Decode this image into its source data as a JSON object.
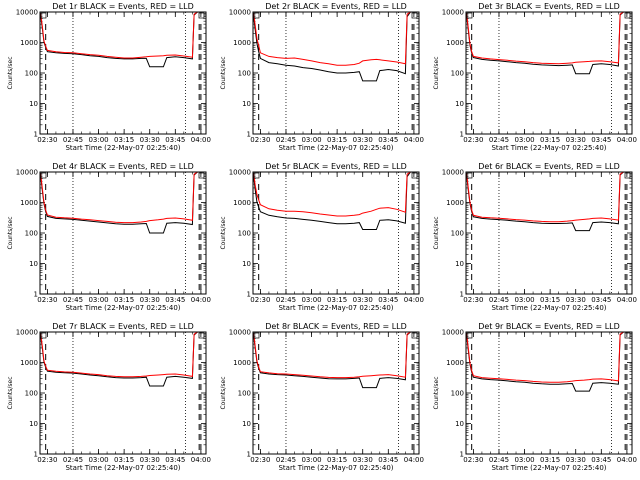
{
  "colors": {
    "events": "#000000",
    "lld": "#ff0000",
    "background": "#ffffff"
  },
  "axes": {
    "ylabel": "Counts/sec",
    "xlabel": "Start Time (22-May-07 02:25:40)",
    "x_tick_labels": [
      "02:30",
      "02:45",
      "03:00",
      "03:15",
      "03:30",
      "03:45",
      "04:00"
    ],
    "y_tick_labels": [
      "1",
      "10",
      "100",
      "1000",
      "10000"
    ]
  },
  "chart_data": [
    {
      "type": "line",
      "title": "Det 1r BLACK = Events, RED = LLD",
      "y_scale": "log",
      "ylim": [
        1,
        10000
      ],
      "xlim": [
        "02:25:40",
        "04:03:00"
      ],
      "x": [
        "02:26",
        "02:27",
        "02:28",
        "02:29",
        "02:30",
        "02:35",
        "02:40",
        "02:45",
        "02:50",
        "02:55",
        "03:00",
        "03:05",
        "03:10",
        "03:15",
        "03:20",
        "03:25",
        "03:28",
        "03:30",
        "03:35",
        "03:38",
        "03:40",
        "03:45",
        "03:50",
        "03:55",
        "03:56",
        "03:58"
      ],
      "series": [
        {
          "name": "Events",
          "values": [
            8000,
            3000,
            1000,
            700,
            500,
            460,
            440,
            430,
            400,
            370,
            350,
            320,
            300,
            290,
            290,
            300,
            300,
            160,
            160,
            160,
            320,
            340,
            320,
            290,
            8000,
            10000
          ]
        },
        {
          "name": "LLD",
          "values": [
            9000,
            3500,
            1100,
            750,
            550,
            500,
            470,
            460,
            430,
            400,
            380,
            350,
            330,
            310,
            310,
            330,
            340,
            350,
            360,
            370,
            380,
            390,
            360,
            330,
            8500,
            10000
          ]
        }
      ],
      "dashed_vlines": [
        "02:29",
        "03:59",
        "04:00"
      ],
      "dotted_vlines": [
        "02:45",
        "03:51"
      ]
    },
    {
      "type": "line",
      "title": "Det 2r BLACK = Events, RED = LLD",
      "y_scale": "log",
      "ylim": [
        1,
        10000
      ],
      "xlim": [
        "02:25:40",
        "04:03:00"
      ],
      "x": [
        "02:26",
        "02:27",
        "02:28",
        "02:29",
        "02:30",
        "02:35",
        "02:40",
        "02:45",
        "02:50",
        "02:55",
        "03:00",
        "03:05",
        "03:10",
        "03:15",
        "03:20",
        "03:25",
        "03:28",
        "03:30",
        "03:35",
        "03:38",
        "03:40",
        "03:45",
        "03:50",
        "03:55",
        "03:56",
        "03:58"
      ],
      "series": [
        {
          "name": "Events",
          "values": [
            7000,
            2500,
            900,
            500,
            300,
            220,
            200,
            180,
            170,
            150,
            140,
            125,
            110,
            100,
            100,
            105,
            110,
            55,
            55,
            55,
            120,
            130,
            120,
            95,
            7000,
            10000
          ]
        },
        {
          "name": "LLD",
          "values": [
            9000,
            3500,
            1300,
            800,
            460,
            350,
            320,
            300,
            310,
            280,
            250,
            220,
            200,
            180,
            180,
            190,
            210,
            250,
            270,
            280,
            270,
            250,
            230,
            200,
            8500,
            10000
          ]
        }
      ],
      "dashed_vlines": [
        "02:29",
        "03:59",
        "04:00"
      ],
      "dotted_vlines": [
        "02:45",
        "03:51"
      ]
    },
    {
      "type": "line",
      "title": "Det 3r BLACK = Events, RED = LLD",
      "y_scale": "log",
      "ylim": [
        1,
        10000
      ],
      "xlim": [
        "02:25:40",
        "04:03:00"
      ],
      "x": [
        "02:26",
        "02:27",
        "02:28",
        "02:29",
        "02:30",
        "02:35",
        "02:40",
        "02:45",
        "02:50",
        "02:55",
        "03:00",
        "03:05",
        "03:10",
        "03:15",
        "03:20",
        "03:25",
        "03:28",
        "03:30",
        "03:35",
        "03:38",
        "03:40",
        "03:45",
        "03:50",
        "03:55",
        "03:56",
        "03:58"
      ],
      "series": [
        {
          "name": "Events",
          "values": [
            8000,
            2500,
            800,
            450,
            320,
            280,
            260,
            250,
            235,
            220,
            210,
            195,
            185,
            180,
            175,
            180,
            185,
            95,
            95,
            95,
            190,
            200,
            190,
            170,
            8000,
            10000
          ]
        },
        {
          "name": "LLD",
          "values": [
            9000,
            3000,
            900,
            500,
            350,
            310,
            290,
            275,
            260,
            245,
            235,
            220,
            210,
            205,
            200,
            210,
            215,
            225,
            235,
            240,
            245,
            250,
            235,
            215,
            8500,
            10000
          ]
        }
      ],
      "dashed_vlines": [
        "02:29",
        "03:59",
        "04:00"
      ],
      "dotted_vlines": [
        "02:45",
        "03:51"
      ]
    },
    {
      "type": "line",
      "title": "Det 4r BLACK = Events, RED = LLD",
      "y_scale": "log",
      "ylim": [
        1,
        10000
      ],
      "xlim": [
        "02:25:40",
        "04:03:00"
      ],
      "x": [
        "02:26",
        "02:27",
        "02:28",
        "02:29",
        "02:30",
        "02:35",
        "02:40",
        "02:45",
        "02:50",
        "02:55",
        "03:00",
        "03:05",
        "03:10",
        "03:15",
        "03:20",
        "03:25",
        "03:28",
        "03:30",
        "03:35",
        "03:38",
        "03:40",
        "03:45",
        "03:50",
        "03:55",
        "03:56",
        "03:58"
      ],
      "series": [
        {
          "name": "Events",
          "values": [
            8000,
            2500,
            900,
            500,
            350,
            300,
            290,
            280,
            260,
            245,
            230,
            215,
            200,
            195,
            195,
            200,
            205,
            100,
            100,
            100,
            210,
            220,
            210,
            190,
            8000,
            10000
          ]
        },
        {
          "name": "LLD",
          "values": [
            9000,
            3000,
            1000,
            560,
            390,
            330,
            315,
            305,
            285,
            270,
            255,
            240,
            225,
            220,
            220,
            230,
            240,
            255,
            270,
            285,
            300,
            310,
            290,
            260,
            8500,
            10000
          ]
        }
      ],
      "dashed_vlines": [
        "02:29",
        "03:59",
        "04:00"
      ],
      "dotted_vlines": [
        "02:45",
        "03:51"
      ]
    },
    {
      "type": "line",
      "title": "Det 5r BLACK = Events, RED = LLD",
      "y_scale": "log",
      "ylim": [
        1,
        10000
      ],
      "xlim": [
        "02:25:40",
        "04:03:00"
      ],
      "x": [
        "02:26",
        "02:27",
        "02:28",
        "02:29",
        "02:30",
        "02:35",
        "02:40",
        "02:45",
        "02:50",
        "02:55",
        "03:00",
        "03:05",
        "03:10",
        "03:15",
        "03:20",
        "03:25",
        "03:28",
        "03:30",
        "03:35",
        "03:38",
        "03:40",
        "03:45",
        "03:50",
        "03:55",
        "03:56",
        "03:58"
      ],
      "series": [
        {
          "name": "Events",
          "values": [
            7000,
            2500,
            1000,
            700,
            500,
            380,
            340,
            310,
            300,
            280,
            260,
            240,
            220,
            200,
            200,
            210,
            220,
            130,
            130,
            130,
            260,
            270,
            250,
            210,
            7000,
            10000
          ]
        },
        {
          "name": "LLD",
          "values": [
            9000,
            3500,
            1800,
            1200,
            850,
            620,
            560,
            520,
            520,
            500,
            460,
            420,
            390,
            360,
            360,
            380,
            400,
            450,
            520,
            600,
            650,
            680,
            600,
            480,
            8500,
            10000
          ]
        }
      ],
      "dashed_vlines": [
        "02:29",
        "03:59",
        "04:00"
      ],
      "dotted_vlines": [
        "02:45",
        "03:51"
      ]
    },
    {
      "type": "line",
      "title": "Det 6r BLACK = Events, RED = LLD",
      "y_scale": "log",
      "ylim": [
        1,
        10000
      ],
      "xlim": [
        "02:25:40",
        "04:03:00"
      ],
      "x": [
        "02:26",
        "02:27",
        "02:28",
        "02:29",
        "02:30",
        "02:35",
        "02:40",
        "02:45",
        "02:50",
        "02:55",
        "03:00",
        "03:05",
        "03:10",
        "03:15",
        "03:20",
        "03:25",
        "03:28",
        "03:30",
        "03:35",
        "03:38",
        "03:40",
        "03:45",
        "03:50",
        "03:55",
        "03:56",
        "03:58"
      ],
      "series": [
        {
          "name": "Events",
          "values": [
            8000,
            2500,
            900,
            500,
            340,
            300,
            285,
            275,
            260,
            245,
            235,
            220,
            210,
            205,
            205,
            210,
            215,
            120,
            120,
            120,
            220,
            230,
            220,
            200,
            8000,
            10000
          ]
        },
        {
          "name": "LLD",
          "values": [
            9000,
            3000,
            1000,
            560,
            380,
            330,
            315,
            305,
            290,
            275,
            265,
            250,
            240,
            235,
            235,
            245,
            255,
            265,
            280,
            290,
            300,
            310,
            290,
            265,
            8500,
            10000
          ]
        }
      ],
      "dashed_vlines": [
        "02:29",
        "03:59",
        "04:00"
      ],
      "dotted_vlines": [
        "02:45",
        "03:51"
      ]
    },
    {
      "type": "line",
      "title": "Det 7r BLACK = Events, RED = LLD",
      "y_scale": "log",
      "ylim": [
        1,
        10000
      ],
      "xlim": [
        "02:25:40",
        "04:03:00"
      ],
      "x": [
        "02:26",
        "02:27",
        "02:28",
        "02:29",
        "02:30",
        "02:35",
        "02:40",
        "02:45",
        "02:50",
        "02:55",
        "03:00",
        "03:05",
        "03:10",
        "03:15",
        "03:20",
        "03:25",
        "03:28",
        "03:30",
        "03:35",
        "03:38",
        "03:40",
        "03:45",
        "03:50",
        "03:55",
        "03:56",
        "03:58"
      ],
      "series": [
        {
          "name": "Events",
          "values": [
            8000,
            3000,
            1000,
            700,
            520,
            480,
            460,
            450,
            420,
            390,
            370,
            340,
            320,
            310,
            310,
            320,
            330,
            170,
            170,
            170,
            330,
            350,
            330,
            300,
            8000,
            10000
          ]
        },
        {
          "name": "LLD",
          "values": [
            9000,
            3500,
            1100,
            750,
            560,
            520,
            490,
            480,
            450,
            420,
            400,
            370,
            350,
            340,
            340,
            350,
            360,
            375,
            390,
            400,
            410,
            420,
            390,
            350,
            8500,
            10000
          ]
        }
      ],
      "dashed_vlines": [
        "02:29",
        "03:59",
        "04:00"
      ],
      "dotted_vlines": [
        "02:45",
        "03:51"
      ]
    },
    {
      "type": "line",
      "title": "Det 8r BLACK = Events, RED = LLD",
      "y_scale": "log",
      "ylim": [
        1,
        10000
      ],
      "xlim": [
        "02:25:40",
        "04:03:00"
      ],
      "x": [
        "02:26",
        "02:27",
        "02:28",
        "02:29",
        "02:30",
        "02:35",
        "02:40",
        "02:45",
        "02:50",
        "02:55",
        "03:00",
        "03:05",
        "03:10",
        "03:15",
        "03:20",
        "03:25",
        "03:28",
        "03:30",
        "03:35",
        "03:38",
        "03:40",
        "03:45",
        "03:50",
        "03:55",
        "03:56",
        "03:58"
      ],
      "series": [
        {
          "name": "Events",
          "values": [
            8000,
            2800,
            1000,
            650,
            460,
            420,
            400,
            390,
            370,
            350,
            330,
            310,
            295,
            290,
            290,
            300,
            310,
            150,
            150,
            150,
            300,
            320,
            300,
            270,
            8000,
            10000
          ]
        },
        {
          "name": "LLD",
          "values": [
            9000,
            3200,
            1100,
            700,
            500,
            455,
            430,
            420,
            400,
            380,
            360,
            340,
            325,
            320,
            320,
            330,
            340,
            355,
            370,
            380,
            390,
            400,
            370,
            330,
            8500,
            10000
          ]
        }
      ],
      "dashed_vlines": [
        "02:29",
        "03:59",
        "04:00"
      ],
      "dotted_vlines": [
        "02:45",
        "03:51"
      ]
    },
    {
      "type": "line",
      "title": "Det 9r BLACK = Events, RED = LLD",
      "y_scale": "log",
      "ylim": [
        1,
        10000
      ],
      "xlim": [
        "02:25:40",
        "04:03:00"
      ],
      "x": [
        "02:26",
        "02:27",
        "02:28",
        "02:29",
        "02:30",
        "02:35",
        "02:40",
        "02:45",
        "02:50",
        "02:55",
        "03:00",
        "03:05",
        "03:10",
        "03:15",
        "03:20",
        "03:25",
        "03:28",
        "03:30",
        "03:35",
        "03:38",
        "03:40",
        "03:45",
        "03:50",
        "03:55",
        "03:56",
        "03:58"
      ],
      "series": [
        {
          "name": "Events",
          "values": [
            8000,
            2500,
            850,
            480,
            330,
            290,
            275,
            265,
            250,
            235,
            225,
            210,
            200,
            195,
            195,
            200,
            205,
            115,
            115,
            115,
            210,
            220,
            210,
            195,
            8000,
            10000
          ]
        },
        {
          "name": "LLD",
          "values": [
            9000,
            3000,
            950,
            540,
            370,
            320,
            305,
            295,
            280,
            265,
            255,
            240,
            230,
            225,
            225,
            235,
            245,
            255,
            265,
            275,
            285,
            290,
            275,
            250,
            8500,
            10000
          ]
        }
      ],
      "dashed_vlines": [
        "02:29",
        "03:59",
        "04:00"
      ],
      "dotted_vlines": [
        "02:45",
        "03:51"
      ]
    }
  ]
}
